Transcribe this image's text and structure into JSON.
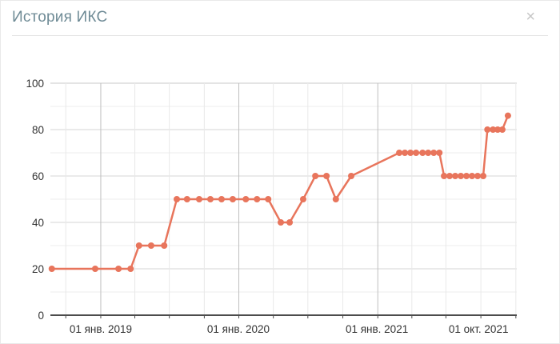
{
  "header": {
    "title": "История ИКС",
    "close_glyph": "×"
  },
  "colors": {
    "line": "#e8755c",
    "title": "#6f8b96",
    "close": "#c6c6c6",
    "axis_label": "#333333",
    "grid_minor": "#ededed",
    "grid_major": "#d5d5d5",
    "grid_top": "#c9c9c9",
    "grid_quarter": "#e9e9e9",
    "grid_year": "#bfbfbf",
    "axis_line": "#4c4c4c"
  },
  "chart_data": {
    "type": "line",
    "title": "История ИКС",
    "xlabel": "",
    "ylabel": "",
    "ylim": [
      0,
      100
    ],
    "y_ticks": [
      0,
      20,
      40,
      60,
      80,
      100
    ],
    "y_minor_step": 10,
    "grid": true,
    "legend": "none",
    "x_ticks": [
      {
        "label": "01 янв. 2019",
        "pos": 0.108
      },
      {
        "label": "01 янв. 2020",
        "pos": 0.403
      },
      {
        "label": "01 янв. 2021",
        "pos": 0.7
      },
      {
        "label": "01 окт. 2021",
        "pos": 0.918
      }
    ],
    "x_gridlines": [
      {
        "pos": 0.033,
        "year": false
      },
      {
        "pos": 0.108,
        "year": true
      },
      {
        "pos": 0.181,
        "year": false
      },
      {
        "pos": 0.255,
        "year": false
      },
      {
        "pos": 0.33,
        "year": false
      },
      {
        "pos": 0.404,
        "year": true
      },
      {
        "pos": 0.478,
        "year": false
      },
      {
        "pos": 0.552,
        "year": false
      },
      {
        "pos": 0.627,
        "year": false
      },
      {
        "pos": 0.702,
        "year": true
      },
      {
        "pos": 0.775,
        "year": false
      },
      {
        "pos": 0.848,
        "year": false
      },
      {
        "pos": 0.923,
        "year": false
      },
      {
        "pos": 0.998,
        "year": false
      }
    ],
    "points": [
      {
        "pos": 0.003,
        "value": 20
      },
      {
        "pos": 0.096,
        "value": 20
      },
      {
        "pos": 0.146,
        "value": 20
      },
      {
        "pos": 0.172,
        "value": 20
      },
      {
        "pos": 0.19,
        "value": 30
      },
      {
        "pos": 0.216,
        "value": 30
      },
      {
        "pos": 0.244,
        "value": 30
      },
      {
        "pos": 0.271,
        "value": 50
      },
      {
        "pos": 0.293,
        "value": 50
      },
      {
        "pos": 0.319,
        "value": 50
      },
      {
        "pos": 0.343,
        "value": 50
      },
      {
        "pos": 0.367,
        "value": 50
      },
      {
        "pos": 0.391,
        "value": 50
      },
      {
        "pos": 0.419,
        "value": 50
      },
      {
        "pos": 0.443,
        "value": 50
      },
      {
        "pos": 0.467,
        "value": 50
      },
      {
        "pos": 0.494,
        "value": 40
      },
      {
        "pos": 0.513,
        "value": 40
      },
      {
        "pos": 0.542,
        "value": 50
      },
      {
        "pos": 0.568,
        "value": 60
      },
      {
        "pos": 0.592,
        "value": 60
      },
      {
        "pos": 0.612,
        "value": 50
      },
      {
        "pos": 0.645,
        "value": 60
      },
      {
        "pos": 0.748,
        "value": 70
      },
      {
        "pos": 0.76,
        "value": 70
      },
      {
        "pos": 0.772,
        "value": 70
      },
      {
        "pos": 0.784,
        "value": 70
      },
      {
        "pos": 0.798,
        "value": 70
      },
      {
        "pos": 0.81,
        "value": 70
      },
      {
        "pos": 0.822,
        "value": 70
      },
      {
        "pos": 0.834,
        "value": 70
      },
      {
        "pos": 0.844,
        "value": 60
      },
      {
        "pos": 0.856,
        "value": 60
      },
      {
        "pos": 0.868,
        "value": 60
      },
      {
        "pos": 0.88,
        "value": 60
      },
      {
        "pos": 0.892,
        "value": 60
      },
      {
        "pos": 0.904,
        "value": 60
      },
      {
        "pos": 0.916,
        "value": 60
      },
      {
        "pos": 0.928,
        "value": 60
      },
      {
        "pos": 0.937,
        "value": 80
      },
      {
        "pos": 0.949,
        "value": 80
      },
      {
        "pos": 0.959,
        "value": 80
      },
      {
        "pos": 0.969,
        "value": 80
      },
      {
        "pos": 0.981,
        "value": 86
      }
    ]
  }
}
